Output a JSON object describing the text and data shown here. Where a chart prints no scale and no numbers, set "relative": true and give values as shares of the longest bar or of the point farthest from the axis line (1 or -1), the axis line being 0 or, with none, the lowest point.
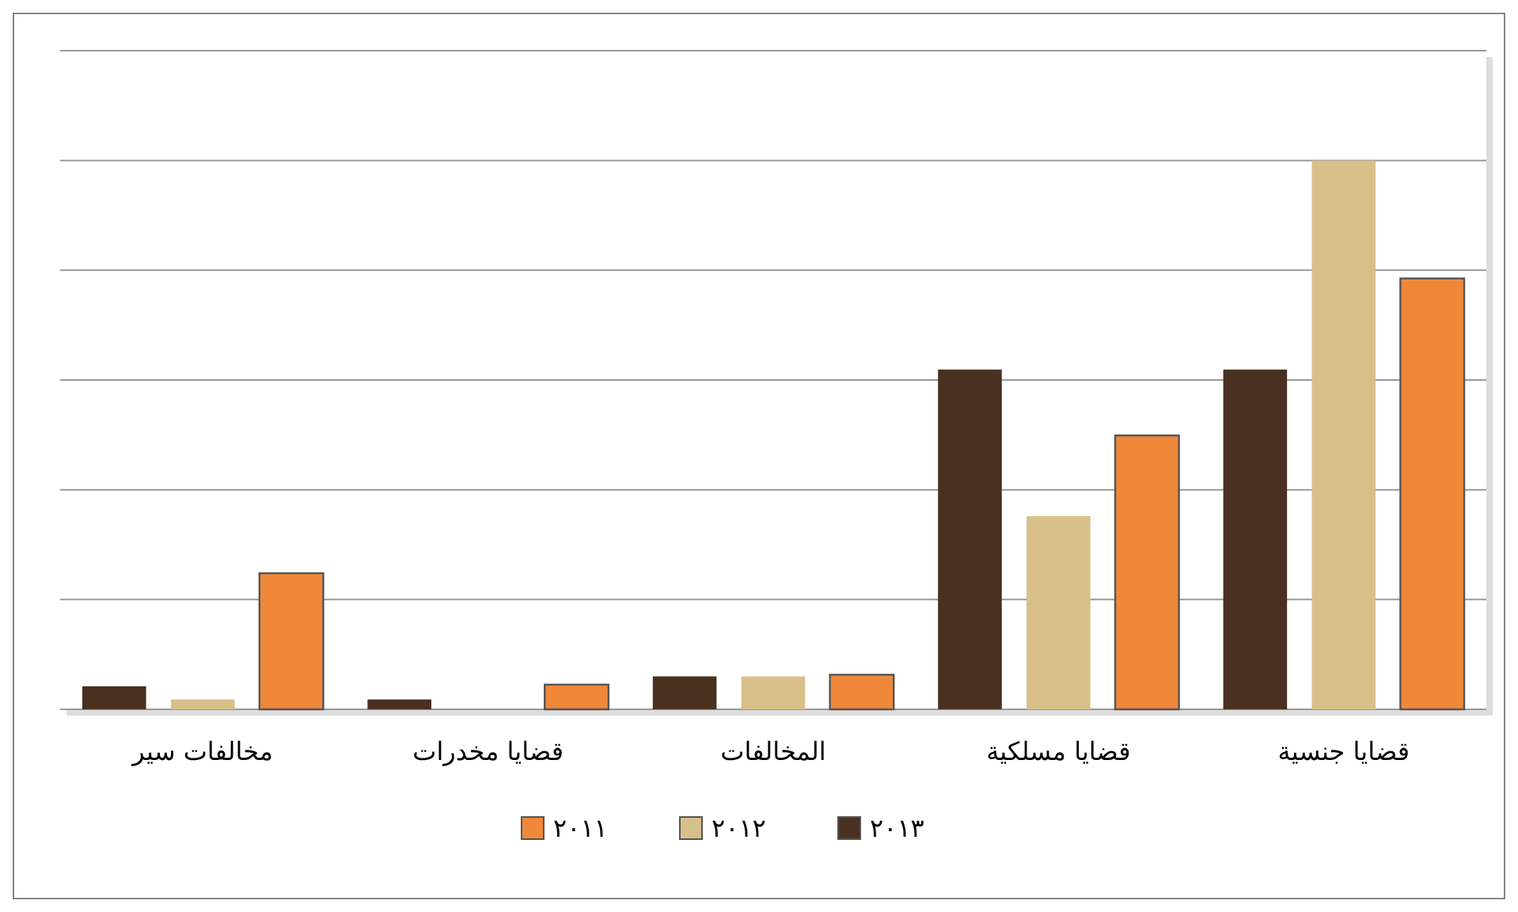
{
  "chart_data": {
    "type": "bar",
    "relative": true,
    "categories": [
      "مخالفات سير",
      "قضايا مخدرات",
      "المخالفات",
      "قضايا مسلكية",
      "قضايا جنسية"
    ],
    "series": [
      {
        "name": "٢٠١٣",
        "color": "#4a3020",
        "values": [
          0.042,
          0.018,
          0.06,
          0.619,
          0.619
        ]
      },
      {
        "name": "٢٠١٢",
        "color": "#d8c08a",
        "values": [
          0.018,
          0,
          0.06,
          0.352,
          1
        ]
      },
      {
        "name": "٢٠١١",
        "color": "#f0883a",
        "values": [
          0.248,
          0.045,
          0.063,
          0.499,
          0.785
        ]
      }
    ],
    "grid": "y",
    "legend": "bottom"
  }
}
